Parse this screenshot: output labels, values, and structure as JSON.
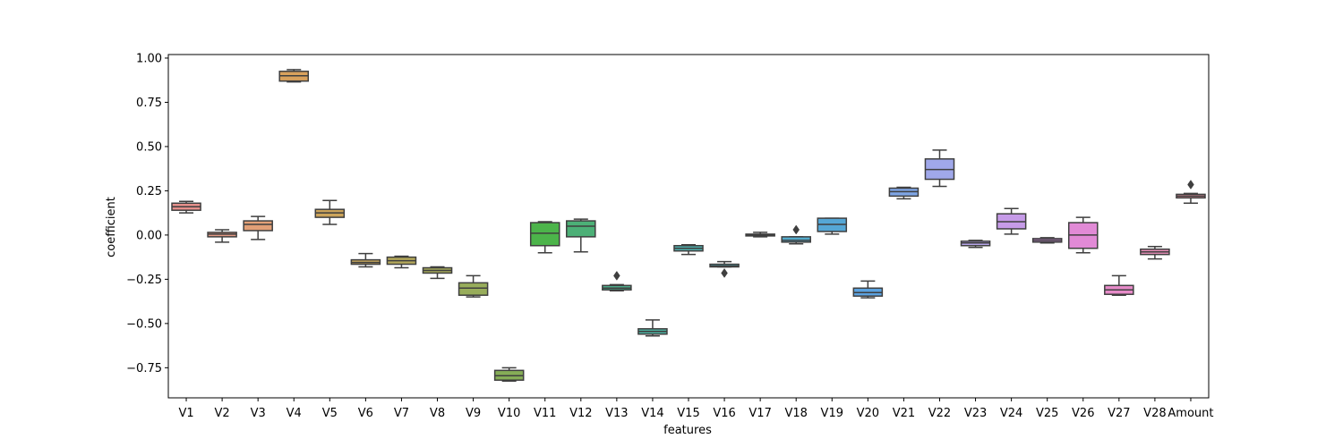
{
  "chart_data": {
    "type": "box",
    "xlabel": "features",
    "ylabel": "coefficient",
    "ylim": [
      -0.92,
      1.02
    ],
    "y_ticks": [
      1.0,
      0.75,
      0.5,
      0.25,
      0.0,
      -0.25,
      -0.5,
      -0.75
    ],
    "y_tick_labels": [
      "1.00",
      "0.75",
      "0.50",
      "0.25",
      "0.00",
      "−0.25",
      "−0.50",
      "−0.75"
    ],
    "grid": false,
    "series": [
      {
        "name": "V1",
        "color": "#e7908b",
        "whisker_low": 0.125,
        "q1": 0.14,
        "median": 0.16,
        "q3": 0.18,
        "whisker_high": 0.19,
        "outliers": []
      },
      {
        "name": "V2",
        "color": "#e59a84",
        "whisker_low": -0.04,
        "q1": -0.01,
        "median": 0.005,
        "q3": 0.015,
        "whisker_high": 0.03,
        "outliers": []
      },
      {
        "name": "V3",
        "color": "#e2a077",
        "whisker_low": -0.025,
        "q1": 0.025,
        "median": 0.06,
        "q3": 0.08,
        "whisker_high": 0.105,
        "outliers": []
      },
      {
        "name": "V4",
        "color": "#d9a15c",
        "whisker_low": 0.865,
        "q1": 0.87,
        "median": 0.9,
        "q3": 0.925,
        "whisker_high": 0.935,
        "outliers": []
      },
      {
        "name": "V5",
        "color": "#cca45b",
        "whisker_low": 0.06,
        "q1": 0.1,
        "median": 0.125,
        "q3": 0.145,
        "whisker_high": 0.195,
        "outliers": []
      },
      {
        "name": "V6",
        "color": "#c3a55d",
        "whisker_low": -0.18,
        "q1": -0.165,
        "median": -0.155,
        "q3": -0.14,
        "whisker_high": -0.105,
        "outliers": []
      },
      {
        "name": "V7",
        "color": "#b5a95b",
        "whisker_low": -0.185,
        "q1": -0.165,
        "median": -0.145,
        "q3": -0.125,
        "whisker_high": -0.12,
        "outliers": []
      },
      {
        "name": "V8",
        "color": "#a7aa5b",
        "whisker_low": -0.245,
        "q1": -0.215,
        "median": -0.2,
        "q3": -0.185,
        "whisker_high": -0.18,
        "outliers": []
      },
      {
        "name": "V9",
        "color": "#98ad5b",
        "whisker_low": -0.35,
        "q1": -0.34,
        "median": -0.3,
        "q3": -0.27,
        "whisker_high": -0.23,
        "outliers": []
      },
      {
        "name": "V10",
        "color": "#86ad57",
        "whisker_low": -0.825,
        "q1": -0.82,
        "median": -0.795,
        "q3": -0.765,
        "whisker_high": -0.75,
        "outliers": []
      },
      {
        "name": "V11",
        "color": "#4cb44a",
        "whisker_low": -0.1,
        "q1": -0.06,
        "median": 0.01,
        "q3": 0.07,
        "whisker_high": 0.075,
        "outliers": []
      },
      {
        "name": "V12",
        "color": "#4cb077",
        "whisker_low": -0.095,
        "q1": -0.01,
        "median": 0.05,
        "q3": 0.08,
        "whisker_high": 0.09,
        "outliers": []
      },
      {
        "name": "V13",
        "color": "#4cb08e",
        "whisker_low": -0.315,
        "q1": -0.31,
        "median": -0.3,
        "q3": -0.285,
        "whisker_high": -0.28,
        "outliers": [
          -0.23
        ]
      },
      {
        "name": "V14",
        "color": "#4db09f",
        "whisker_low": -0.57,
        "q1": -0.56,
        "median": -0.545,
        "q3": -0.53,
        "whisker_high": -0.48,
        "outliers": []
      },
      {
        "name": "V15",
        "color": "#4eb0ad",
        "whisker_low": -0.11,
        "q1": -0.09,
        "median": -0.075,
        "q3": -0.06,
        "whisker_high": -0.055,
        "outliers": []
      },
      {
        "name": "V16",
        "color": "#4fafb8",
        "whisker_low": -0.18,
        "q1": -0.18,
        "median": -0.175,
        "q3": -0.165,
        "whisker_high": -0.15,
        "outliers": [
          -0.215
        ]
      },
      {
        "name": "V17",
        "color": "#51adc1",
        "whisker_low": -0.01,
        "q1": -0.005,
        "median": 0.0,
        "q3": 0.005,
        "whisker_high": 0.015,
        "outliers": []
      },
      {
        "name": "V18",
        "color": "#53abcc",
        "whisker_low": -0.05,
        "q1": -0.04,
        "median": -0.03,
        "q3": -0.01,
        "whisker_high": -0.01,
        "outliers": [
          0.03
        ]
      },
      {
        "name": "V19",
        "color": "#55a7d6",
        "whisker_low": 0.005,
        "q1": 0.02,
        "median": 0.06,
        "q3": 0.095,
        "whisker_high": 0.095,
        "outliers": []
      },
      {
        "name": "V20",
        "color": "#5ca3e0",
        "whisker_low": -0.355,
        "q1": -0.345,
        "median": -0.325,
        "q3": -0.3,
        "whisker_high": -0.26,
        "outliers": []
      },
      {
        "name": "V21",
        "color": "#7ea5e4",
        "whisker_low": 0.205,
        "q1": 0.22,
        "median": 0.245,
        "q3": 0.265,
        "whisker_high": 0.27,
        "outliers": []
      },
      {
        "name": "V22",
        "color": "#a0a8ea",
        "whisker_low": 0.275,
        "q1": 0.315,
        "median": 0.37,
        "q3": 0.43,
        "whisker_high": 0.48,
        "outliers": []
      },
      {
        "name": "V23",
        "color": "#b7a6ea",
        "whisker_low": -0.07,
        "q1": -0.06,
        "median": -0.045,
        "q3": -0.035,
        "whisker_high": -0.03,
        "outliers": []
      },
      {
        "name": "V24",
        "color": "#c69be8",
        "whisker_low": 0.005,
        "q1": 0.035,
        "median": 0.075,
        "q3": 0.12,
        "whisker_high": 0.15,
        "outliers": []
      },
      {
        "name": "V25",
        "color": "#d490e5",
        "whisker_low": -0.045,
        "q1": -0.04,
        "median": -0.03,
        "q3": -0.02,
        "whisker_high": -0.015,
        "outliers": []
      },
      {
        "name": "V26",
        "color": "#e18ad6",
        "whisker_low": -0.1,
        "q1": -0.075,
        "median": 0.0,
        "q3": 0.07,
        "whisker_high": 0.1,
        "outliers": []
      },
      {
        "name": "V27",
        "color": "#e68bc8",
        "whisker_low": -0.34,
        "q1": -0.335,
        "median": -0.31,
        "q3": -0.285,
        "whisker_high": -0.23,
        "outliers": []
      },
      {
        "name": "V28",
        "color": "#e78eb7",
        "whisker_low": -0.135,
        "q1": -0.11,
        "median": -0.095,
        "q3": -0.08,
        "whisker_high": -0.065,
        "outliers": []
      },
      {
        "name": "Amount",
        "color": "#e7909f",
        "whisker_low": 0.18,
        "q1": 0.21,
        "median": 0.22,
        "q3": 0.23,
        "whisker_high": 0.235,
        "outliers": [
          0.285
        ]
      }
    ]
  }
}
